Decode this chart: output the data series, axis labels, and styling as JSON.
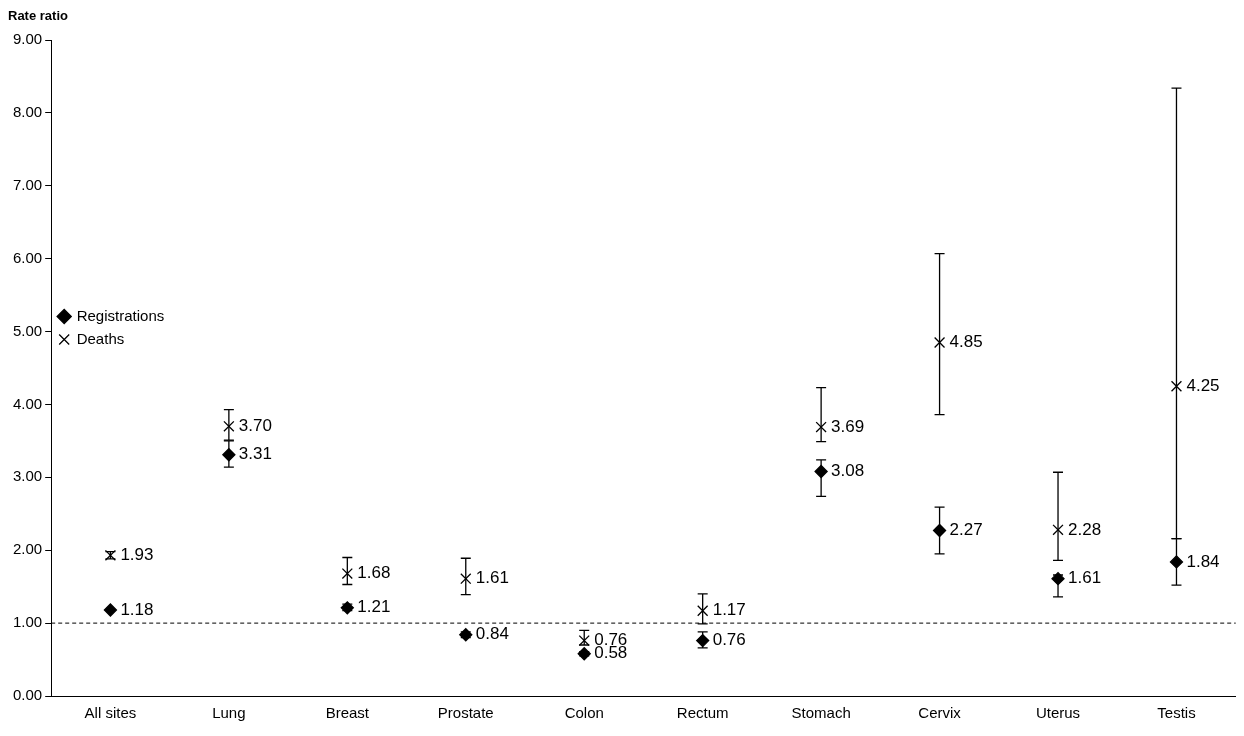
{
  "chart_data": {
    "type": "scatter",
    "ylabel": "Rate ratio",
    "categories": [
      "All sites",
      "Lung",
      "Breast",
      "Prostate",
      "Colon",
      "Rectum",
      "Stomach",
      "Cervix",
      "Uterus",
      "Testis"
    ],
    "series": [
      {
        "name": "Registrations",
        "color": "#000000",
        "marker": "diamond",
        "values": [
          1.18,
          3.31,
          1.21,
          0.84,
          0.58,
          0.76,
          3.08,
          2.27,
          1.61,
          1.84
        ],
        "value_labels": [
          "1.18",
          "3.31",
          "1.21",
          "0.84",
          "0.58",
          "0.76",
          "3.08",
          "2.27",
          "1.61",
          "1.84"
        ],
        "errors": [
          null,
          [
            3.14,
            3.5
          ],
          [
            1.17,
            1.26
          ],
          [
            0.8,
            0.88
          ],
          [
            0.55,
            0.61
          ],
          [
            0.66,
            0.88
          ],
          [
            2.74,
            3.24
          ],
          [
            1.95,
            2.59
          ],
          [
            1.36,
            1.66
          ],
          [
            1.52,
            2.16
          ]
        ]
      },
      {
        "name": "Deaths",
        "color": "#000000",
        "marker": "cross",
        "values": [
          1.93,
          3.7,
          1.68,
          1.61,
          0.76,
          1.17,
          3.69,
          4.85,
          2.28,
          4.25
        ],
        "value_labels": [
          "1.93",
          "3.70",
          "1.68",
          "1.61",
          "0.76",
          "1.17",
          "3.69",
          "4.85",
          "2.28",
          "4.25"
        ],
        "errors": [
          [
            1.88,
            1.98
          ],
          [
            3.51,
            3.93
          ],
          [
            1.53,
            1.9
          ],
          [
            1.39,
            1.89
          ],
          [
            0.7,
            0.9
          ],
          [
            0.99,
            1.4
          ],
          [
            3.49,
            4.23
          ],
          [
            3.86,
            6.07
          ],
          [
            1.86,
            3.07
          ],
          [
            2.16,
            8.34
          ]
        ]
      }
    ],
    "ylim": [
      0,
      9
    ],
    "yticks": [
      {
        "value": 0,
        "label": "0.00"
      },
      {
        "value": 1,
        "label": "1.00"
      },
      {
        "value": 2,
        "label": "2.00"
      },
      {
        "value": 3,
        "label": "3.00"
      },
      {
        "value": 4,
        "label": "4.00"
      },
      {
        "value": 5,
        "label": "5.00"
      },
      {
        "value": 6,
        "label": "6.00"
      },
      {
        "value": 7,
        "label": "7.00"
      },
      {
        "value": 8,
        "label": "8.00"
      },
      {
        "value": 9,
        "label": "9.00"
      }
    ],
    "ref_lines": [
      {
        "axis": "y",
        "value": 1,
        "line_style": "dashed",
        "color": "#000000"
      }
    ],
    "grid": false,
    "legend": "top"
  }
}
